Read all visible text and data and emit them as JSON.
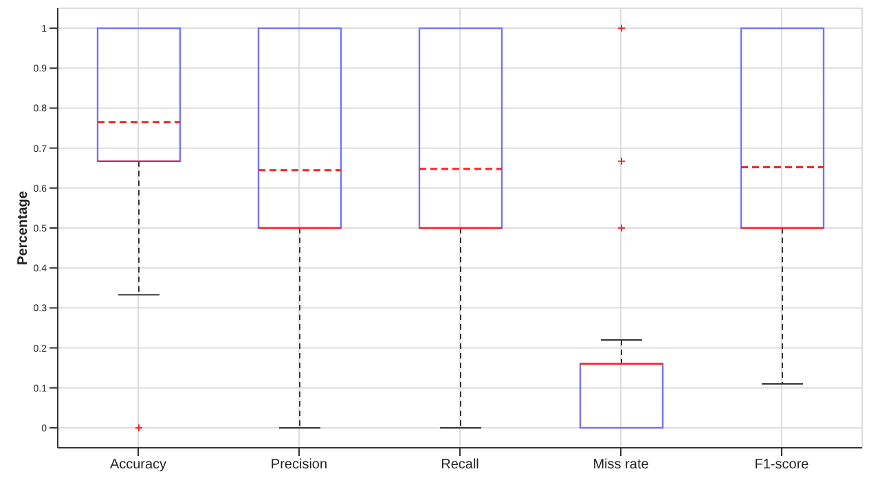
{
  "chart_data": {
    "type": "box",
    "ylabel": "Percentage",
    "categories": [
      "Accuracy",
      "Precision",
      "Recall",
      "Miss rate",
      "F1-score"
    ],
    "ylim": [
      -0.05,
      1.05
    ],
    "yticks": [
      0,
      0.1,
      0.2,
      0.3,
      0.4,
      0.5,
      0.6,
      0.7,
      0.8,
      0.9,
      1
    ],
    "grid": true,
    "series": [
      {
        "color": "#7272ff",
        "boxes": [
          {
            "low": 0.333,
            "q1": 0.667,
            "median": 0.667,
            "q3": 1,
            "high": 1,
            "mean": 0.765,
            "outliers": [
              0
            ]
          },
          {
            "low": 0,
            "q1": 0.5,
            "median": 0.5,
            "q3": 1,
            "high": 1,
            "mean": 0.645
          },
          {
            "low": 0,
            "q1": 0.5,
            "median": 0.5,
            "q3": 1,
            "high": 1,
            "mean": 0.648
          },
          {
            "low": 0,
            "q1": 0,
            "median": 0.16,
            "q3": 0.16,
            "high": 0.22,
            "outliers": [
              0.5,
              0.667,
              1
            ]
          },
          {
            "low": 0.11,
            "q1": 0.5,
            "median": 0.5,
            "q3": 1,
            "high": 1,
            "mean": 0.652
          }
        ]
      }
    ]
  }
}
